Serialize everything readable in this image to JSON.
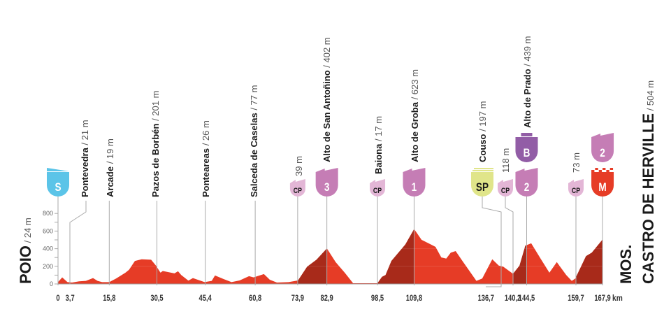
{
  "chart_data": {
    "type": "area",
    "xlabel_unit": "km",
    "ylim": [
      0,
      800
    ],
    "yticks": [
      0,
      200,
      400,
      600,
      800
    ],
    "xticks": [
      "0",
      "3,7",
      "15,8",
      "30,5",
      "45,4",
      "60,8",
      "73,9",
      "82,9",
      "98,5",
      "109,8",
      "136,7",
      "140,2",
      "144,5",
      "159,7",
      "167,9"
    ],
    "xtick_values": [
      0,
      3.7,
      15.8,
      30.5,
      45.4,
      60.8,
      73.9,
      82.9,
      98.5,
      109.8,
      136.7,
      140.2,
      144.5,
      159.7,
      167.9
    ],
    "km_unit_label": "km",
    "start": {
      "name": "POIO",
      "alt": "/ 24 m"
    },
    "finish": {
      "line1": "MOS.",
      "name": "CASTRO DE HERVILLE",
      "alt": "/ 504 m"
    },
    "profile": [
      [
        0,
        21
      ],
      [
        1.3,
        75
      ],
      [
        2.9,
        21
      ],
      [
        4.3,
        16
      ],
      [
        6.5,
        29
      ],
      [
        8.6,
        35
      ],
      [
        10.8,
        67
      ],
      [
        12.2,
        35
      ],
      [
        13.6,
        21
      ],
      [
        15.8,
        21
      ],
      [
        17.9,
        61
      ],
      [
        20.8,
        128
      ],
      [
        21.9,
        160
      ],
      [
        23.7,
        261
      ],
      [
        25.8,
        280
      ],
      [
        28.7,
        275
      ],
      [
        30.2,
        208
      ],
      [
        31.6,
        128
      ],
      [
        32.3,
        147
      ],
      [
        35.9,
        120
      ],
      [
        37,
        144
      ],
      [
        38,
        101
      ],
      [
        40.2,
        37
      ],
      [
        41.6,
        67
      ],
      [
        45.2,
        21
      ],
      [
        47.4,
        35
      ],
      [
        48.4,
        96
      ],
      [
        51,
        56
      ],
      [
        53.5,
        21
      ],
      [
        56,
        40
      ],
      [
        58.9,
        88
      ],
      [
        60.3,
        75
      ],
      [
        63.5,
        112
      ],
      [
        65.3,
        48
      ],
      [
        67.5,
        16
      ],
      [
        71.1,
        21
      ],
      [
        74,
        40
      ],
      [
        76.8,
        195
      ],
      [
        79.7,
        275
      ],
      [
        82.9,
        402
      ],
      [
        85.6,
        248
      ],
      [
        88.4,
        128
      ],
      [
        91,
        8
      ],
      [
        98.5,
        8
      ],
      [
        99.9,
        80
      ],
      [
        101,
        101
      ],
      [
        102.8,
        261
      ],
      [
        107.1,
        448
      ],
      [
        109.8,
        623
      ],
      [
        112.1,
        501
      ],
      [
        115,
        448
      ],
      [
        116.4,
        421
      ],
      [
        118.2,
        301
      ],
      [
        119.7,
        288
      ],
      [
        121.1,
        355
      ],
      [
        122.6,
        373
      ],
      [
        124.7,
        261
      ],
      [
        129,
        35
      ],
      [
        130.8,
        61
      ],
      [
        133.9,
        280
      ],
      [
        135.9,
        208
      ],
      [
        137.3,
        195
      ],
      [
        140.3,
        115
      ],
      [
        142.3,
        208
      ],
      [
        144.1,
        435
      ],
      [
        145.9,
        461
      ],
      [
        148.8,
        288
      ],
      [
        151.5,
        128
      ],
      [
        153.8,
        248
      ],
      [
        156.7,
        101
      ],
      [
        158.4,
        35
      ],
      [
        159.5,
        61
      ],
      [
        162.8,
        315
      ],
      [
        164.6,
        355
      ],
      [
        167.9,
        504
      ]
    ],
    "climb_segments": [
      [
        73.9,
        82.9
      ],
      [
        98.5,
        109.8
      ],
      [
        140.2,
        144.5
      ],
      [
        159.7,
        167.9
      ]
    ],
    "colors": {
      "profile": "#e63c26",
      "climb": "#a82a1a",
      "start": "#5bc4e8",
      "cp": "#e3b6d6",
      "kom": "#c57db5",
      "bonus": "#925da6",
      "sprint": "#e0e58a",
      "finish": "#e63c26"
    },
    "markers": [
      {
        "km": 0,
        "badge": "S",
        "kind": "start"
      },
      {
        "km": 3.7,
        "name": "Pontevedra",
        "alt": "/ 21 m"
      },
      {
        "km": 15.8,
        "name": "Arcade",
        "alt": "/ 19 m"
      },
      {
        "km": 30.5,
        "name": "Pazos de Borbén",
        "alt": "/ 201 m"
      },
      {
        "km": 45.4,
        "name": "Ponteareas",
        "alt": "/ 26 m"
      },
      {
        "km": 60.8,
        "name": "Salceda de Caselas",
        "alt": "/ 77 m"
      },
      {
        "km": 73.9,
        "badge": "CP",
        "kind": "cp",
        "name": "",
        "alt": "39 m"
      },
      {
        "km": 82.9,
        "badge": "3",
        "kind": "kom",
        "name": "Alto de San Antoñino",
        "alt": "/ 402 m"
      },
      {
        "km": 98.5,
        "badge": "CP",
        "kind": "cp",
        "name": "Baiona",
        "alt": "/ 17 m"
      },
      {
        "km": 109.8,
        "badge": "1",
        "kind": "kom",
        "name": "Alto de Groba",
        "alt": "/ 623 m"
      },
      {
        "km": 136.7,
        "badge": "SP",
        "kind": "sprint",
        "name": "Couso",
        "alt": "/ 197 m"
      },
      {
        "km": 140.2,
        "badge": "CP",
        "kind": "cp",
        "name": "",
        "alt": "118 m"
      },
      {
        "km": 144.5,
        "badge": "2",
        "kind": "kom",
        "badge2": "B",
        "kind2": "bonus",
        "name": "Alto de Prado",
        "alt": "/ 439 m"
      },
      {
        "km": 159.7,
        "badge": "CP",
        "kind": "cp",
        "name": "",
        "alt": "73 m"
      },
      {
        "km": 167.9,
        "badge": "M",
        "kind": "finish",
        "badge2": "2",
        "kind2": "kom"
      }
    ]
  }
}
